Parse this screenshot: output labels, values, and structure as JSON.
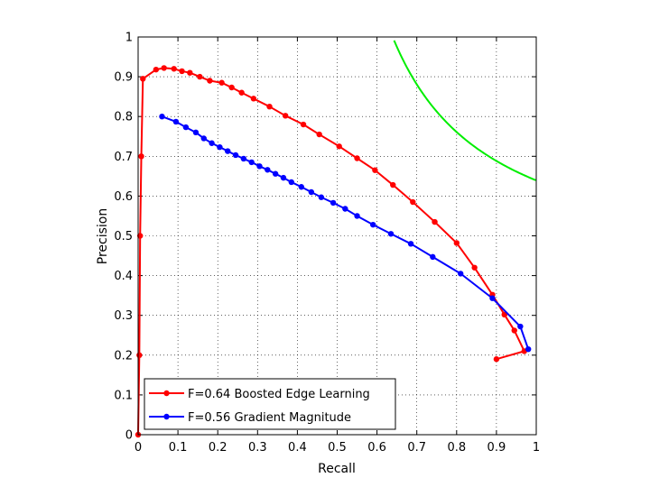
{
  "chart_data": {
    "type": "line",
    "title": "",
    "xlabel": "Recall",
    "ylabel": "Precision",
    "xlim": [
      0,
      1
    ],
    "ylim": [
      0,
      1
    ],
    "xticks": [
      "0",
      "0.1",
      "0.2",
      "0.3",
      "0.4",
      "0.5",
      "0.6",
      "0.7",
      "0.8",
      "0.9",
      "1"
    ],
    "yticks": [
      "0",
      "0.1",
      "0.2",
      "0.3",
      "0.4",
      "0.5",
      "0.6",
      "0.7",
      "0.8",
      "0.9",
      "1"
    ],
    "grid": true,
    "legend_position": "bottom-left",
    "series": [
      {
        "name": "F=0.64 Boosted Edge Learning",
        "color": "#ff0000",
        "x": [
          0.0,
          0.003,
          0.005,
          0.008,
          0.012,
          0.045,
          0.065,
          0.09,
          0.11,
          0.13,
          0.155,
          0.18,
          0.21,
          0.235,
          0.26,
          0.29,
          0.33,
          0.37,
          0.415,
          0.455,
          0.505,
          0.55,
          0.595,
          0.64,
          0.69,
          0.745,
          0.8,
          0.845,
          0.89,
          0.92,
          0.945,
          0.97,
          0.9
        ],
        "y": [
          0.0,
          0.2,
          0.5,
          0.7,
          0.895,
          0.918,
          0.922,
          0.92,
          0.914,
          0.91,
          0.9,
          0.89,
          0.885,
          0.873,
          0.86,
          0.845,
          0.825,
          0.802,
          0.78,
          0.755,
          0.725,
          0.695,
          0.665,
          0.628,
          0.585,
          0.535,
          0.482,
          0.42,
          0.352,
          0.302,
          0.262,
          0.21,
          0.19
        ]
      },
      {
        "name": "F=0.56 Gradient Magnitude",
        "color": "#0000ff",
        "x": [
          0.06,
          0.095,
          0.12,
          0.145,
          0.165,
          0.185,
          0.205,
          0.225,
          0.245,
          0.265,
          0.285,
          0.305,
          0.325,
          0.345,
          0.365,
          0.385,
          0.41,
          0.435,
          0.46,
          0.49,
          0.52,
          0.55,
          0.59,
          0.635,
          0.685,
          0.74,
          0.81,
          0.89,
          0.96,
          0.98
        ],
        "y": [
          0.8,
          0.787,
          0.773,
          0.76,
          0.745,
          0.733,
          0.723,
          0.713,
          0.703,
          0.694,
          0.685,
          0.675,
          0.666,
          0.656,
          0.646,
          0.635,
          0.623,
          0.61,
          0.597,
          0.583,
          0.568,
          0.55,
          0.528,
          0.505,
          0.48,
          0.447,
          0.405,
          0.343,
          0.272,
          0.215
        ]
      }
    ],
    "curve": {
      "type": "iso-F contour",
      "color": "#00ee00",
      "f_value": 0.78
    }
  }
}
